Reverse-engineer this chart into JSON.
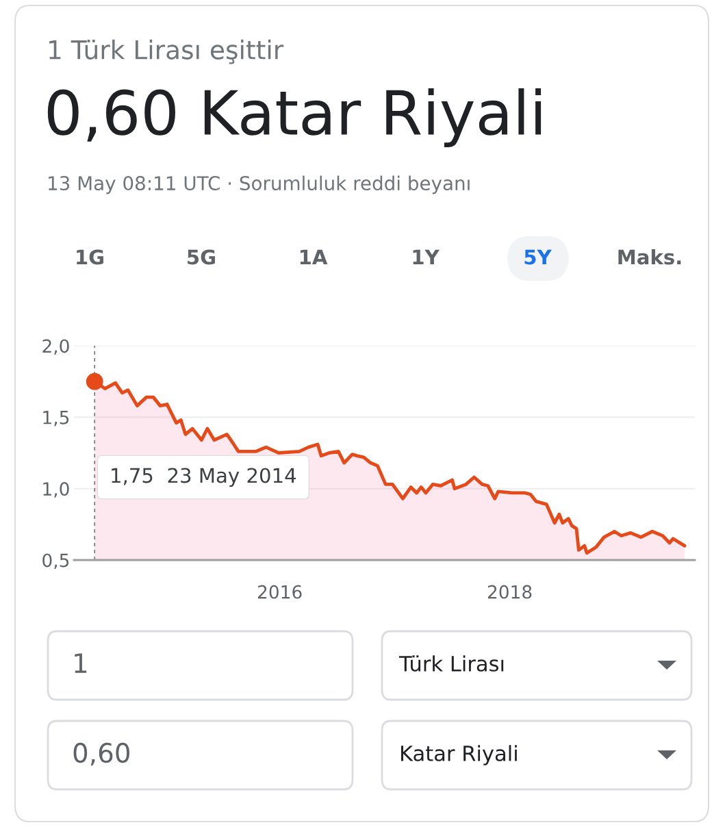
{
  "chart_data": {
    "type": "area",
    "title": "0,60 Katar Riyali",
    "subtitle": "13 May 08:11 UTC · Sorumluluk reddi beyanı",
    "annotations": [
      "1 Türk Lirası eşittir",
      "1G",
      "5G",
      "1A",
      "1Y",
      "5Y",
      "Maks.",
      "1",
      "Türk Lirası",
      "0,60",
      "Katar Riyali",
      "1,75  23 May 2014"
    ],
    "series": [
      {
        "color": "#e64a19",
        "x": [
          2014.39,
          2014.48,
          2014.57,
          2014.63,
          2014.68,
          2014.76,
          2014.84,
          2014.9,
          2014.96,
          2015.02,
          2015.1,
          2015.14,
          2015.18,
          2015.24,
          2015.32,
          2015.37,
          2015.43,
          2015.54,
          2015.6,
          2015.64,
          2015.79,
          2015.88,
          2015.99,
          2016.17,
          2016.25,
          2016.33,
          2016.36,
          2016.43,
          2016.51,
          2016.56,
          2016.63,
          2016.67,
          2016.73,
          2016.79,
          2016.85,
          2016.92,
          2016.98,
          2017.07,
          2017.14,
          2017.19,
          2017.23,
          2017.27,
          2017.33,
          2017.4,
          2017.5,
          2017.52,
          2017.62,
          2017.69,
          2017.76,
          2017.81,
          2017.87,
          2017.9,
          2018.02,
          2018.13,
          2018.18,
          2018.23,
          2018.32,
          2018.39,
          2018.43,
          2018.46,
          2018.51,
          2018.54,
          2018.58,
          2018.6,
          2018.65,
          2018.67,
          2018.75,
          2018.82,
          2018.91,
          2018.97,
          2019.05,
          2019.14,
          2019.24,
          2019.33,
          2019.39,
          2019.42,
          2019.52
        ],
        "values": [
          1.75,
          1.7,
          1.74,
          1.67,
          1.69,
          1.58,
          1.64,
          1.64,
          1.58,
          1.59,
          1.46,
          1.48,
          1.38,
          1.42,
          1.34,
          1.42,
          1.34,
          1.38,
          1.31,
          1.26,
          1.26,
          1.29,
          1.25,
          1.26,
          1.29,
          1.31,
          1.23,
          1.25,
          1.26,
          1.18,
          1.24,
          1.23,
          1.22,
          1.18,
          1.16,
          1.03,
          1.03,
          0.93,
          1.01,
          0.97,
          1.01,
          0.97,
          1.03,
          1.02,
          1.06,
          1.0,
          1.03,
          1.08,
          1.03,
          1.02,
          0.93,
          0.98,
          0.97,
          0.97,
          0.96,
          0.91,
          0.89,
          0.76,
          0.82,
          0.76,
          0.79,
          0.74,
          0.72,
          0.57,
          0.6,
          0.55,
          0.59,
          0.66,
          0.7,
          0.67,
          0.69,
          0.66,
          0.7,
          0.67,
          0.62,
          0.65,
          0.6
        ]
      },
      {
        "type": "scatter",
        "color": "#e64a19",
        "marker": "circle",
        "x": [
          2014.39
        ],
        "values": [
          1.75
        ]
      }
    ],
    "ref_lines": [
      {
        "axis": "x",
        "value": 2014.39,
        "line_style": "dashed",
        "color": "#777777"
      }
    ],
    "xlim": [
      2014.21,
      2019.61
    ],
    "xticks": [
      2016,
      2018
    ],
    "ylim": [
      0.5,
      2.0
    ],
    "yticks": [
      {
        "value": 0.5,
        "label": "0,5"
      },
      {
        "value": 1.0,
        "label": "1,0"
      },
      {
        "value": 1.5,
        "label": "1,5"
      },
      {
        "value": 2.0,
        "label": "2,0"
      }
    ],
    "grid": "y"
  }
}
